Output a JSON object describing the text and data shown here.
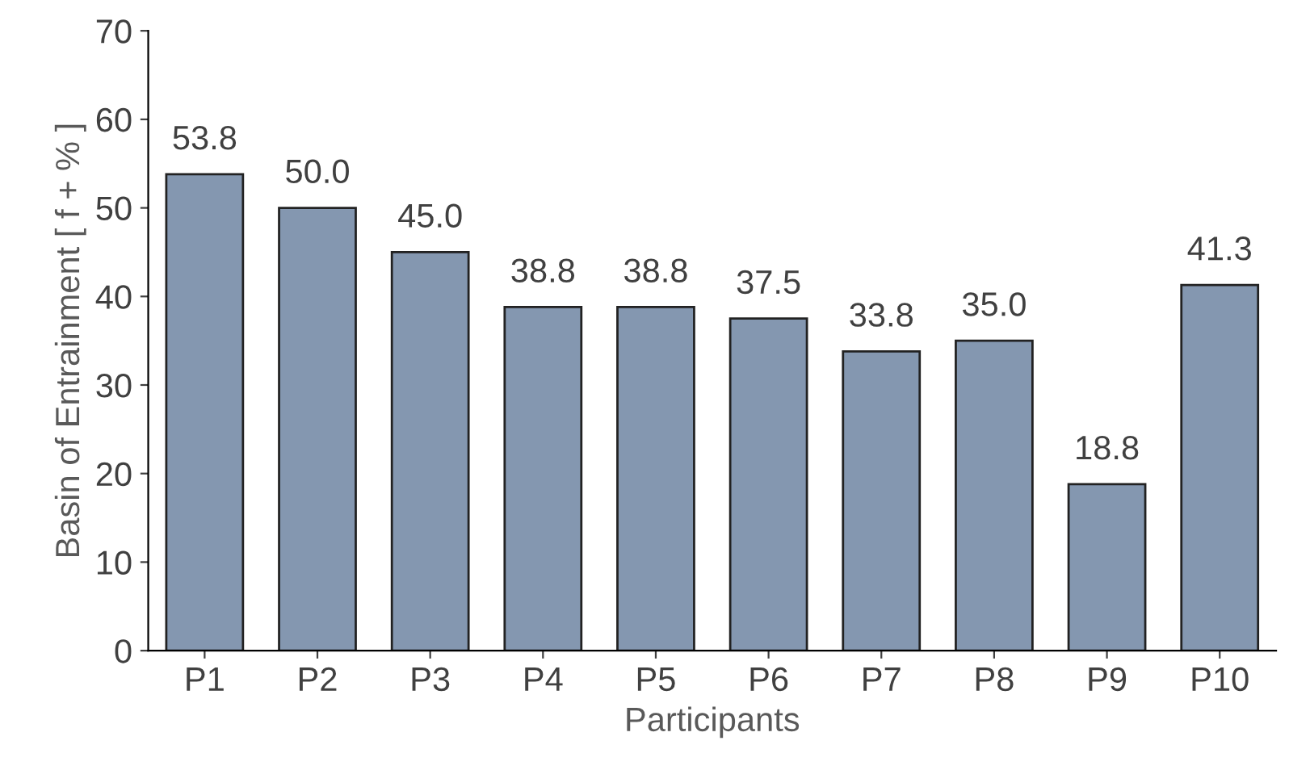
{
  "chart_data": {
    "type": "bar",
    "xlabel": "Participants",
    "ylabel": "Basin of Entrainment [ f + % ]",
    "categories": [
      "P1",
      "P2",
      "P3",
      "P4",
      "P5",
      "P6",
      "P7",
      "P8",
      "P9",
      "P10"
    ],
    "values": [
      53.8,
      50.0,
      45.0,
      38.8,
      38.8,
      37.5,
      33.8,
      35.0,
      18.8,
      41.3
    ],
    "value_labels": [
      "53.8",
      "50.0",
      "45.0",
      "38.8",
      "38.8",
      "37.5",
      "33.8",
      "35.0",
      "18.8",
      "41.3"
    ],
    "color": "#8497b0",
    "ylim": [
      0,
      70
    ],
    "yticks": [
      0,
      10,
      20,
      30,
      40,
      50,
      60,
      70
    ],
    "grid": false
  }
}
